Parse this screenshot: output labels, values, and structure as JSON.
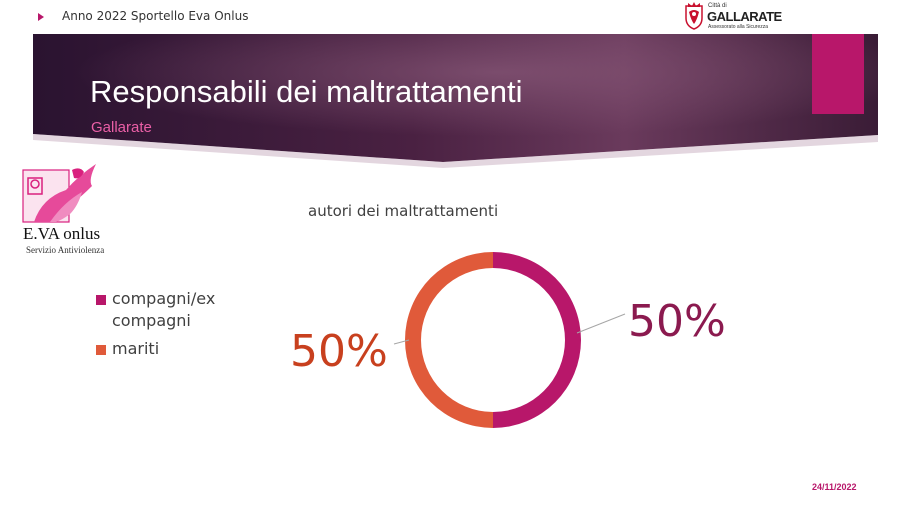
{
  "header": {
    "text": "Anno 2022 Sportello Eva Onlus",
    "city_logo": {
      "small": "Città di",
      "name": "GALLARATE",
      "sub": "Assessorato alla Sicurezza",
      "shield_color": "#c8102e"
    }
  },
  "slide": {
    "title": "Responsabili dei maltrattamenti",
    "subtitle": "Gallarate",
    "date": "24/11/2022"
  },
  "org_logo": {
    "name": "E.VA onlus",
    "tagline": "Servizio Antiviolenza",
    "color": "#d9207e"
  },
  "colors": {
    "accent": "#b8176a",
    "banner_dark": "#2a1330",
    "banner_light": "#6a3a5c"
  },
  "chart_data": {
    "type": "pie",
    "style": "donut",
    "title": "autori dei maltrattamenti",
    "categories": [
      "compagni/ex compagni",
      "mariti"
    ],
    "values": [
      50,
      50
    ],
    "data_labels": [
      "50%",
      "50%"
    ],
    "colors": [
      "#b8176a",
      "#e05a3a"
    ],
    "label_colors": [
      "#8b1a4f",
      "#c8401e"
    ],
    "legend_placement": "left"
  }
}
